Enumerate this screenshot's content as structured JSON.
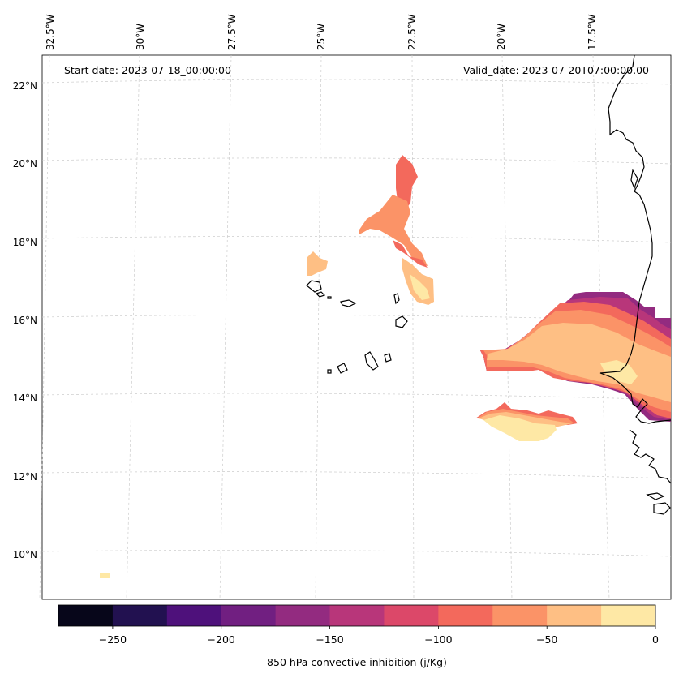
{
  "map": {
    "start_date": "Start date: 2023-07-18_00:00:00",
    "valid_date": "Valid_date: 2023-07-20T07:00:00.00",
    "lon_labels": [
      "32.5°W",
      "30°W",
      "27.5°W",
      "25°W",
      "22.5°W",
      "20°W",
      "17.5°W"
    ],
    "lat_labels": [
      "22°N",
      "20°N",
      "18°N",
      "16°N",
      "14°N",
      "12°N",
      "10°N"
    ]
  },
  "colorbar": {
    "label": "850 hPa convective inhibition (j/Kg)",
    "tick_labels": [
      "−250",
      "−200",
      "−150",
      "−100",
      "−50",
      "0"
    ],
    "colors": [
      "#07061a",
      "#221150",
      "#4e117b",
      "#711f81",
      "#932b80",
      "#b8367a",
      "#dc4869",
      "#f3695c",
      "#fb9367",
      "#febf84",
      "#fee8a5"
    ]
  },
  "chart_data": {
    "type": "heatmap",
    "variable": "850 hPa convective inhibition",
    "units": "j/Kg",
    "color_levels": [
      -275,
      -250,
      -225,
      -200,
      -175,
      -150,
      -125,
      -100,
      -75,
      -50,
      -25,
      0
    ],
    "lon_ticks": [
      -32.5,
      -30,
      -27.5,
      -25,
      -22.5,
      -20,
      -17.5
    ],
    "lat_ticks": [
      22,
      20,
      18,
      16,
      14,
      12,
      10
    ],
    "lon_range": [
      -33,
      -16.5
    ],
    "lat_range": [
      9,
      22.8
    ]
  }
}
